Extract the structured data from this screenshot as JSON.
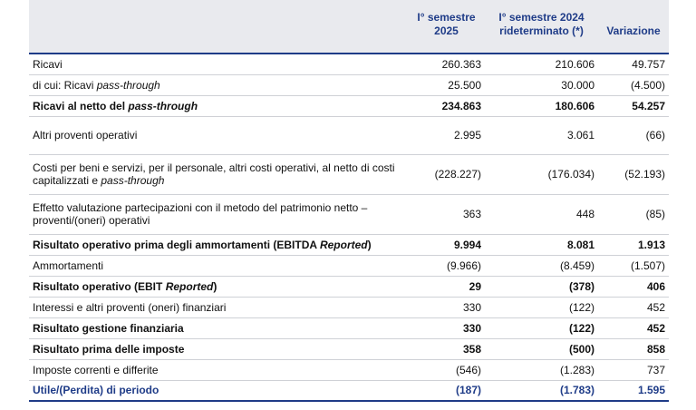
{
  "table": {
    "columns": [
      [
        "I° semestre",
        "2025"
      ],
      [
        "I° semestre 2024",
        "rideterminato (*)"
      ],
      [
        "Variazione"
      ]
    ],
    "rows": [
      {
        "label": [
          "Ricavi"
        ],
        "cells": [
          "260.363",
          "210.606",
          "49.757"
        ]
      },
      {
        "label": [
          "di cui: Ricavi ",
          "pass-through"
        ],
        "cells": [
          "25.500",
          "30.000",
          "(4.500)"
        ]
      },
      {
        "label": [
          "Ricavi al netto del ",
          "pass-through"
        ],
        "cells": [
          "234.863",
          "180.606",
          "54.257"
        ],
        "bold": true
      },
      {
        "label": [
          "Altri proventi operativi"
        ],
        "cells": [
          "2.995",
          "3.061",
          "(66)"
        ]
      },
      {
        "label": [
          "Costi per beni e servizi, per il personale, altri costi operativi, al netto di costi capitalizzati e ",
          "pass-through"
        ],
        "cells": [
          "(228.227)",
          "(176.034)",
          "(52.193)"
        ]
      },
      {
        "label": [
          "Effetto valutazione partecipazioni con il metodo del patrimonio netto – proventi/(oneri) operativi"
        ],
        "cells": [
          "363",
          "448",
          "(85)"
        ]
      },
      {
        "label": [
          "Risultato operativo prima degli ammortamenti (EBITDA ",
          "Reported",
          ")"
        ],
        "cells": [
          "9.994",
          "8.081",
          "1.913"
        ],
        "bold": true
      },
      {
        "label": [
          "Ammortamenti"
        ],
        "cells": [
          "(9.966)",
          "(8.459)",
          "(1.507)"
        ]
      },
      {
        "label": [
          "Risultato operativo (EBIT ",
          "Reported",
          ")"
        ],
        "cells": [
          "29",
          "(378)",
          "406"
        ],
        "bold": true
      },
      {
        "label": [
          "Interessi e altri proventi (oneri) finanziari"
        ],
        "cells": [
          "330",
          "(122)",
          "452"
        ]
      },
      {
        "label": [
          "Risultato gestione finanziaria"
        ],
        "cells": [
          "330",
          "(122)",
          "452"
        ],
        "bold": true
      },
      {
        "label": [
          "Risultato prima delle imposte"
        ],
        "cells": [
          "358",
          "(500)",
          "858"
        ],
        "bold": true
      },
      {
        "label": [
          "Imposte correnti e differite"
        ],
        "cells": [
          "(546)",
          "(1.283)",
          "737"
        ]
      },
      {
        "label": [
          "Utile/(Perdita) di periodo"
        ],
        "cells": [
          "(187)",
          "(1.783)",
          "1.595"
        ],
        "bold": true
      }
    ]
  }
}
